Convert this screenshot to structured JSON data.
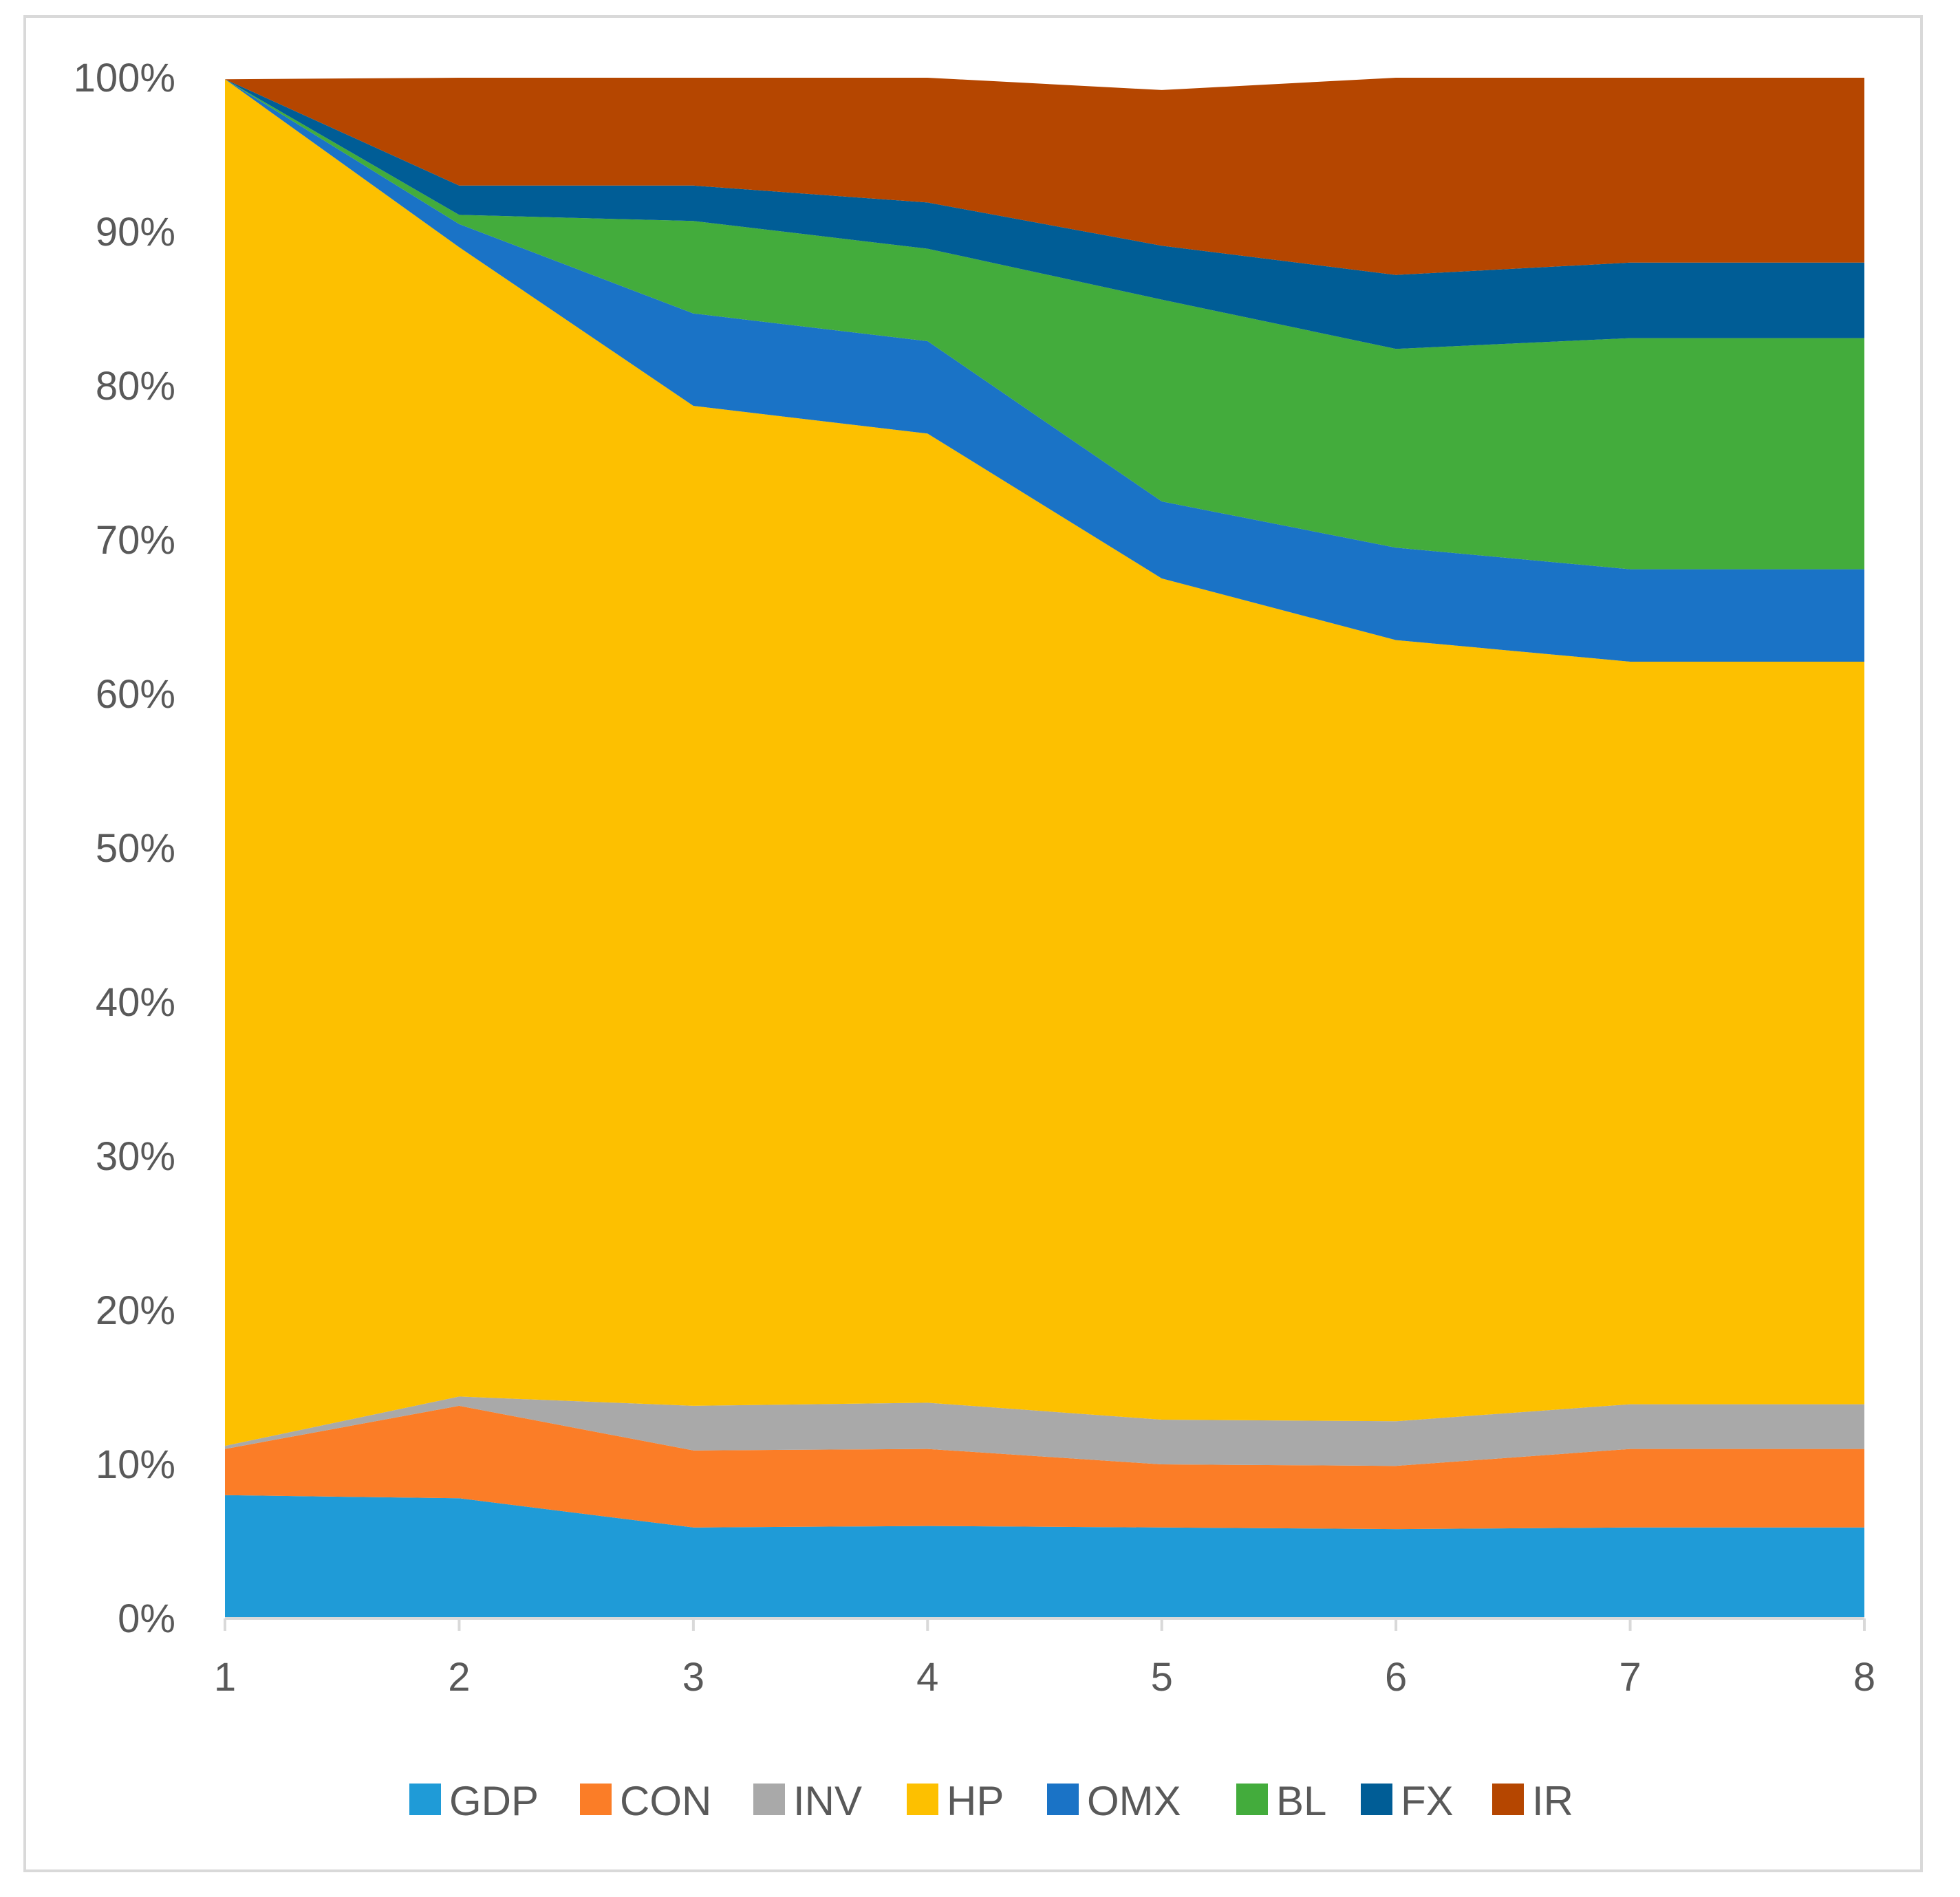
{
  "chart_data": {
    "type": "area",
    "stacked": "percent",
    "title": "",
    "xlabel": "",
    "ylabel": "",
    "x": [
      1,
      2,
      3,
      4,
      5,
      6,
      7,
      8
    ],
    "x_tick_labels": [
      "1",
      "2",
      "3",
      "4",
      "5",
      "6",
      "7",
      "8"
    ],
    "y_tick_labels": [
      "0%",
      "10%",
      "20%",
      "30%",
      "40%",
      "50%",
      "60%",
      "70%",
      "80%",
      "90%",
      "100%"
    ],
    "ylim": [
      0,
      100
    ],
    "legend_position": "bottom",
    "series": [
      {
        "name": "GDP",
        "color": "#1f9bd7",
        "values": [
          8.0,
          7.8,
          5.9,
          6.0,
          5.9,
          5.8,
          5.9,
          5.9
        ]
      },
      {
        "name": "CON",
        "color": "#fb7d27",
        "values": [
          3.0,
          6.0,
          5.0,
          5.0,
          4.1,
          4.1,
          5.1,
          5.1
        ]
      },
      {
        "name": "INV",
        "color": "#a9a9a9",
        "values": [
          0.2,
          0.6,
          2.9,
          3.0,
          2.9,
          2.9,
          2.9,
          2.9
        ]
      },
      {
        "name": "HP",
        "color": "#fdc000",
        "values": [
          88.7,
          74.6,
          64.9,
          62.9,
          54.6,
          50.7,
          48.2,
          48.2
        ]
      },
      {
        "name": "OMX",
        "color": "#1a73c6",
        "values": [
          0.0,
          1.5,
          6.0,
          6.0,
          5.0,
          6.0,
          6.0,
          6.0
        ]
      },
      {
        "name": "BL",
        "color": "#43ac3c",
        "values": [
          0.0,
          0.6,
          6.0,
          6.0,
          13.1,
          12.9,
          15.0,
          15.0
        ]
      },
      {
        "name": "FX",
        "color": "#005d96",
        "values": [
          0.0,
          1.9,
          2.3,
          3.0,
          3.5,
          4.8,
          4.9,
          4.9
        ]
      },
      {
        "name": "IR",
        "color": "#b54600",
        "values": [
          0.0,
          7.0,
          7.0,
          8.1,
          10.1,
          12.8,
          12.0,
          12.0
        ]
      }
    ]
  }
}
